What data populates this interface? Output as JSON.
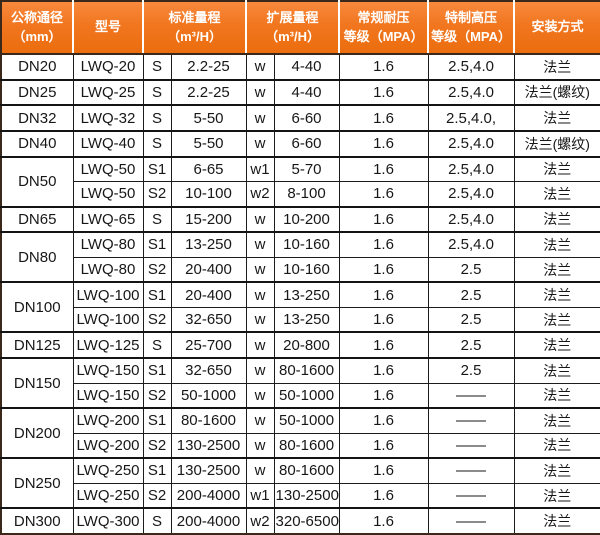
{
  "colors": {
    "header_orange": "#f1761f",
    "header_text": "#ffffff",
    "header_separator": "#ffffff",
    "body_text": "#171717",
    "border_dark": "#3a281a",
    "grid_line": "#1c1c1c"
  },
  "chart_data": {
    "type": "table",
    "columns": [
      {
        "lines": [
          "公称通径",
          "（mm）"
        ]
      },
      {
        "lines": [
          "型号"
        ]
      },
      {
        "lines": [
          "标准量程",
          "（m³/H）"
        ]
      },
      {
        "lines": [
          "扩展量程",
          "（m³/H）"
        ]
      },
      {
        "lines": [
          "常规耐压",
          "等级（MPA）"
        ]
      },
      {
        "lines": [
          "特制高压",
          "等级（MPA）"
        ]
      },
      {
        "lines": [
          "安装方式"
        ]
      }
    ],
    "rows": [
      {
        "dn": "DN20",
        "dn_span": 1,
        "model": "LWQ-20",
        "s": "S",
        "std": "2.2-25",
        "w": "w",
        "ext": "4-40",
        "pn": "1.6",
        "hp": "2.5,4.0",
        "mount": "法兰"
      },
      {
        "dn": "DN25",
        "dn_span": 1,
        "model": "LWQ-25",
        "s": "S",
        "std": "2.2-25",
        "w": "w",
        "ext": "4-40",
        "pn": "1.6",
        "hp": "2.5,4.0",
        "mount": "法兰(螺纹)"
      },
      {
        "dn": "DN32",
        "dn_span": 1,
        "model": "LWQ-32",
        "s": "S",
        "std": "5-50",
        "w": "w",
        "ext": "6-60",
        "pn": "1.6",
        "hp": "2.5,4.0,",
        "mount": "法兰"
      },
      {
        "dn": "DN40",
        "dn_span": 1,
        "model": "LWQ-40",
        "s": "S",
        "std": "5-50",
        "w": "w",
        "ext": "6-60",
        "pn": "1.6",
        "hp": "2.5,4.0",
        "mount": "法兰(螺纹)"
      },
      {
        "dn": "DN50",
        "dn_span": 2,
        "model": "LWQ-50",
        "s": "S1",
        "std": "6-65",
        "w": "w1",
        "ext": "5-70",
        "pn": "1.6",
        "hp": "2.5,4.0",
        "mount": "法兰"
      },
      {
        "dn": null,
        "model": "LWQ-50",
        "s": "S2",
        "std": "10-100",
        "w": "w2",
        "ext": "8-100",
        "pn": "1.6",
        "hp": "2.5,4.0",
        "mount": "法兰"
      },
      {
        "dn": "DN65",
        "dn_span": 1,
        "model": "LWQ-65",
        "s": "S",
        "std": "15-200",
        "w": "w",
        "ext": "10-200",
        "pn": "1.6",
        "hp": "2.5,4.0",
        "mount": "法兰"
      },
      {
        "dn": "DN80",
        "dn_span": 2,
        "model": "LWQ-80",
        "s": "S1",
        "std": "13-250",
        "w": "w",
        "ext": "10-160",
        "pn": "1.6",
        "hp": "2.5,4.0",
        "mount": "法兰"
      },
      {
        "dn": null,
        "model": "LWQ-80",
        "s": "S2",
        "std": "20-400",
        "w": "w",
        "ext": "10-160",
        "pn": "1.6",
        "hp": "2.5",
        "mount": "法兰"
      },
      {
        "dn": "DN100",
        "dn_span": 2,
        "model": "LWQ-100",
        "s": "S1",
        "std": "20-400",
        "w": "w",
        "ext": "13-250",
        "pn": "1.6",
        "hp": "2.5",
        "mount": "法兰"
      },
      {
        "dn": null,
        "model": "LWQ-100",
        "s": "S2",
        "std": "32-650",
        "w": "w",
        "ext": "13-250",
        "pn": "1.6",
        "hp": "2.5",
        "mount": "法兰"
      },
      {
        "dn": "DN125",
        "dn_span": 1,
        "model": "LWQ-125",
        "s": "S",
        "std": "25-700",
        "w": "w",
        "ext": "20-800",
        "pn": "1.6",
        "hp": "2.5",
        "mount": "法兰"
      },
      {
        "dn": "DN150",
        "dn_span": 2,
        "model": "LWQ-150",
        "s": "S1",
        "std": "32-650",
        "w": "w",
        "ext": "80-1600",
        "pn": "1.6",
        "hp": "2.5",
        "mount": "法兰"
      },
      {
        "dn": null,
        "model": "LWQ-150",
        "s": "S2",
        "std": "50-1000",
        "w": "w",
        "ext": "50-1000",
        "pn": "1.6",
        "hp": "——",
        "mount": "法兰"
      },
      {
        "dn": "DN200",
        "dn_span": 2,
        "model": "LWQ-200",
        "s": "S1",
        "std": "80-1600",
        "w": "w",
        "ext": "50-1000",
        "pn": "1.6",
        "hp": "——",
        "mount": "法兰"
      },
      {
        "dn": null,
        "model": "LWQ-200",
        "s": "S2",
        "std": "130-2500",
        "w": "w",
        "ext": "80-1600",
        "pn": "1.6",
        "hp": "——",
        "mount": "法兰"
      },
      {
        "dn": "DN250",
        "dn_span": 2,
        "model": "LWQ-250",
        "s": "S1",
        "std": "130-2500",
        "w": "w",
        "ext": "80-1600",
        "pn": "1.6",
        "hp": "——",
        "mount": "法兰"
      },
      {
        "dn": null,
        "model": "LWQ-250",
        "s": "S2",
        "std": "200-4000",
        "w": "w1",
        "ext": "130-2500",
        "pn": "1.6",
        "hp": "——",
        "mount": "法兰"
      },
      {
        "dn": "DN300",
        "dn_span": 1,
        "model": "LWQ-300",
        "s": "S",
        "std": "200-4000",
        "w": "w2",
        "ext": "320-6500",
        "pn": "1.6",
        "hp": "——",
        "mount": "法兰"
      }
    ]
  }
}
